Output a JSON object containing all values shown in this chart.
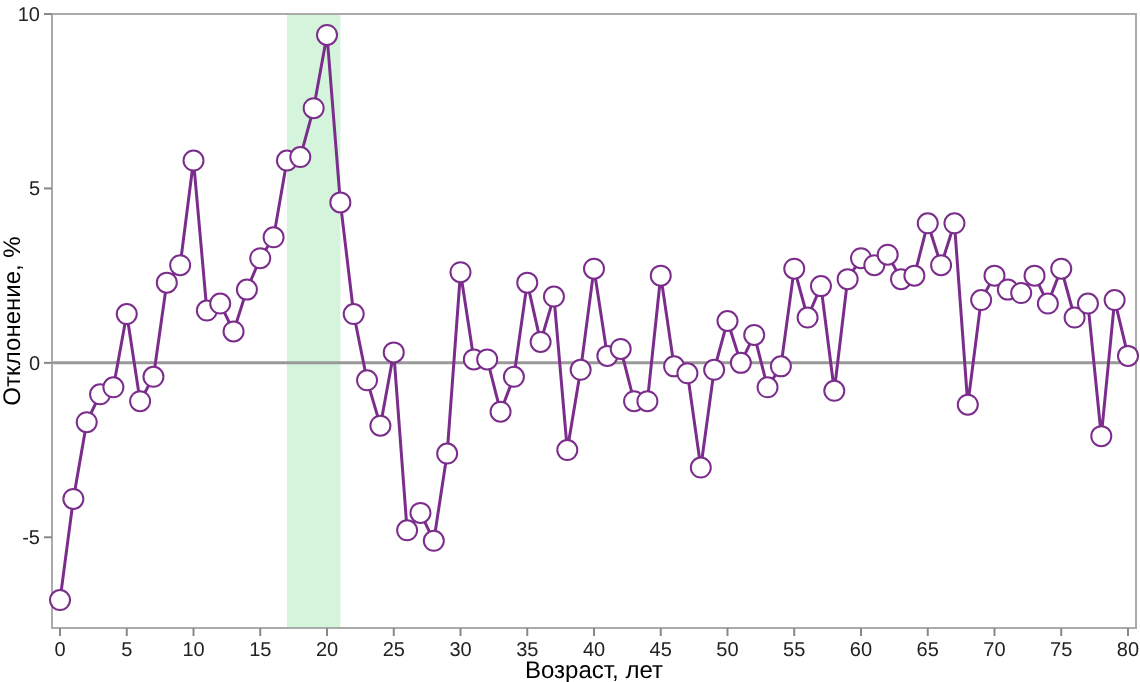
{
  "chart_data": {
    "type": "line",
    "xlabel": "Возраст, лет",
    "ylabel": "Отклонение, %",
    "x": [
      0,
      1,
      2,
      3,
      4,
      5,
      6,
      7,
      8,
      9,
      10,
      11,
      12,
      13,
      14,
      15,
      16,
      17,
      18,
      19,
      20,
      21,
      22,
      23,
      24,
      25,
      26,
      27,
      28,
      29,
      30,
      31,
      32,
      33,
      34,
      35,
      36,
      37,
      38,
      39,
      40,
      41,
      42,
      43,
      44,
      45,
      46,
      47,
      48,
      49,
      50,
      51,
      52,
      53,
      54,
      55,
      56,
      57,
      58,
      59,
      60,
      61,
      62,
      63,
      64,
      65,
      66,
      67,
      68,
      69,
      70,
      71,
      72,
      73,
      74,
      75,
      76,
      77,
      78,
      79,
      80
    ],
    "series": [
      {
        "color": "#7b2d8b",
        "values": [
          -6.8,
          -3.9,
          -1.7,
          -0.9,
          -0.7,
          1.4,
          -1.1,
          -0.4,
          2.3,
          2.8,
          5.8,
          1.5,
          1.7,
          0.9,
          2.1,
          3.0,
          3.6,
          5.8,
          5.9,
          7.3,
          9.4,
          4.6,
          1.4,
          -0.5,
          -1.8,
          0.3,
          -4.8,
          -4.3,
          -5.1,
          -2.6,
          2.6,
          0.1,
          0.1,
          -1.4,
          -0.4,
          2.3,
          0.6,
          1.9,
          -2.5,
          -0.2,
          2.7,
          0.2,
          0.4,
          -1.1,
          -1.1,
          2.5,
          -0.1,
          -0.3,
          -3.0,
          -0.2,
          1.2,
          0.0,
          0.8,
          -0.7,
          -0.1,
          2.7,
          1.3,
          2.2,
          -0.8,
          2.4,
          3.0,
          2.8,
          3.1,
          2.4,
          2.5,
          4.0,
          2.8,
          4.0,
          -1.2,
          1.8,
          2.5,
          2.1,
          2.0,
          2.5,
          1.7,
          2.7,
          1.3,
          1.7,
          -2.1,
          1.8,
          0.2
        ]
      }
    ],
    "xlim": [
      -0.6,
      80.6
    ],
    "ylim": [
      -7.6,
      10
    ],
    "xticks": [
      0,
      5,
      10,
      15,
      20,
      25,
      30,
      35,
      40,
      45,
      50,
      55,
      60,
      65,
      70,
      75,
      80
    ],
    "yticks": [
      -5,
      0,
      5,
      10
    ],
    "ref_lines": [
      {
        "axis": "y",
        "value": 0,
        "color": "#999999"
      }
    ],
    "bands": [
      {
        "axis": "x",
        "from": 17,
        "to": 21,
        "color": "#d4f5dc"
      }
    ],
    "marker": "circle",
    "line_style": "solid",
    "grid": false
  }
}
